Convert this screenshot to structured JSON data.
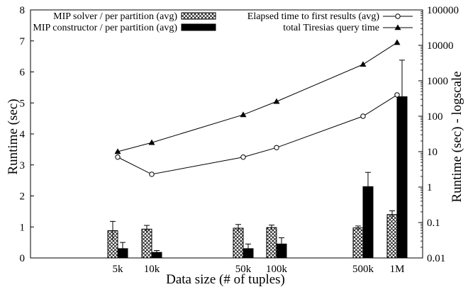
{
  "chart_data": {
    "type": "bar",
    "categories": [
      "5k",
      "10k",
      "50k",
      "100k",
      "500k",
      "1M"
    ],
    "xlabel": "Data size (# of tuples)",
    "ylabel": "Runtime (sec)",
    "y2label": "Runtime (sec) - logscale",
    "ylim": [
      0,
      8
    ],
    "y2lim": [
      0.01,
      100000
    ],
    "y2scale": "log",
    "y_ticks": [
      0,
      1,
      2,
      3,
      4,
      5,
      6,
      7,
      8
    ],
    "y2_ticks": [
      0.01,
      0.1,
      1,
      10,
      100,
      1000,
      10000,
      100000
    ],
    "y2_tick_labels": [
      "0.01",
      "0.1",
      "1",
      "10",
      "100",
      "1000",
      "10000",
      "100000"
    ],
    "grid": false,
    "bar_series": [
      {
        "name": "MIP solver / per partition (avg)",
        "axis": "left",
        "pattern": "crosshatch",
        "values": [
          0.88,
          0.93,
          0.96,
          0.98,
          0.97,
          1.4
        ],
        "error": [
          0.3,
          0.12,
          0.12,
          0.08,
          0.06,
          0.12
        ]
      },
      {
        "name": "MIP constructor / per partition (avg)",
        "axis": "left",
        "pattern": "solid",
        "values": [
          0.3,
          0.18,
          0.3,
          0.45,
          2.3,
          5.2
        ],
        "error": [
          0.2,
          0.06,
          0.15,
          0.2,
          0.46,
          1.18
        ]
      }
    ],
    "line_series": [
      {
        "name": "Elapsed time to first results (avg)",
        "axis": "right",
        "marker": "open-circle",
        "values": [
          7.0,
          2.3,
          7.0,
          13,
          100,
          400
        ]
      },
      {
        "name": "total Tiresias query time",
        "axis": "right",
        "marker": "filled-triangle",
        "values": [
          10,
          18,
          110,
          260,
          2900,
          12000
        ]
      }
    ],
    "legend_placement": "top"
  }
}
